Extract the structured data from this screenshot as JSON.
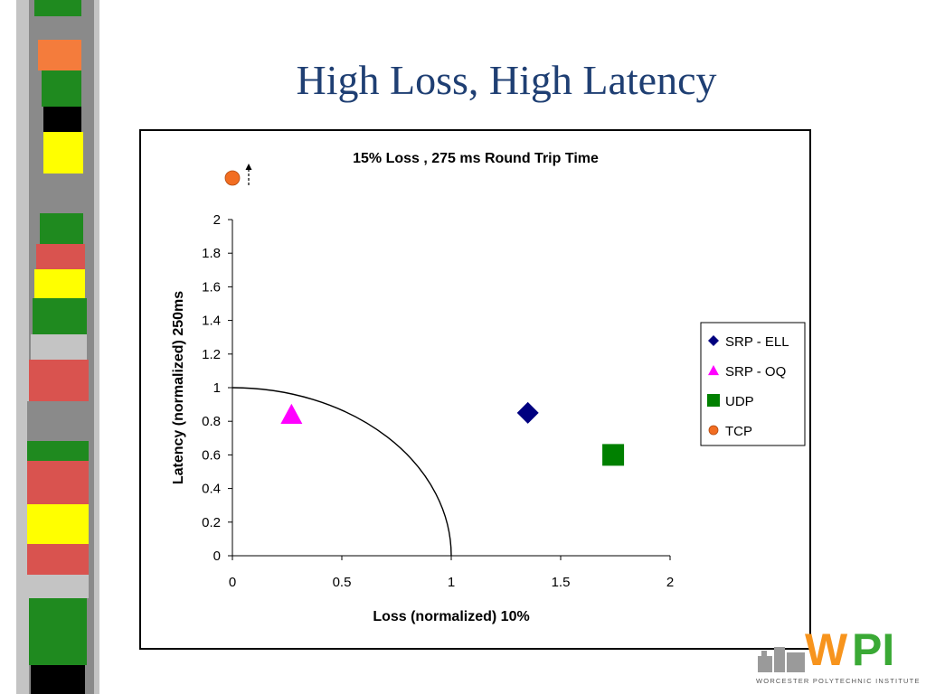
{
  "slide": {
    "title": "High Loss, High Latency"
  },
  "logo": {
    "letters": "WPI",
    "caption": "WORCESTER POLYTECHNIC INSTITUTE"
  },
  "colors": {
    "title": "#1f3f73",
    "srp_ell": "#000080",
    "srp_oq": "#ff00ff",
    "udp": "#008000",
    "tcp": "#f26d21",
    "logo_orange": "#f7941d",
    "logo_green": "#3aa935"
  },
  "chart_data": {
    "type": "scatter",
    "title": "15% Loss , 275 ms Round Trip Time",
    "xlabel": "Loss (normalized) 10%",
    "ylabel": "Latency (normalized) 250ms",
    "xlim": [
      0,
      2
    ],
    "ylim": [
      0,
      2
    ],
    "xticks": [
      0,
      0.5,
      1,
      1.5,
      2
    ],
    "yticks": [
      0,
      0.2,
      0.4,
      0.6,
      0.8,
      1,
      1.2,
      1.4,
      1.6,
      1.8,
      2
    ],
    "xtick_labels": [
      "0",
      "0.5",
      "1",
      "1.5",
      "2"
    ],
    "ytick_labels": [
      "0",
      "0.2",
      "0.4",
      "0.6",
      "0.8",
      "1",
      "1.2",
      "1.4",
      "1.6",
      "1.8",
      "2"
    ],
    "grid": false,
    "legend_position": "right",
    "reference_curve": {
      "shape": "quarter-circle",
      "radius": 1
    },
    "series": [
      {
        "name": "SRP - ELL",
        "marker": "diamond",
        "color": "#000080",
        "x": 1.35,
        "y": 0.85
      },
      {
        "name": "SRP - OQ",
        "marker": "triangle",
        "color": "#ff00ff",
        "x": 0.27,
        "y": 0.84
      },
      {
        "name": "UDP",
        "marker": "square",
        "color": "#008000",
        "x": 1.74,
        "y": 0.6
      },
      {
        "name": "TCP",
        "marker": "circle",
        "color": "#f26d21",
        "x": 0,
        "y": 2.25,
        "off_scale": true
      }
    ]
  }
}
